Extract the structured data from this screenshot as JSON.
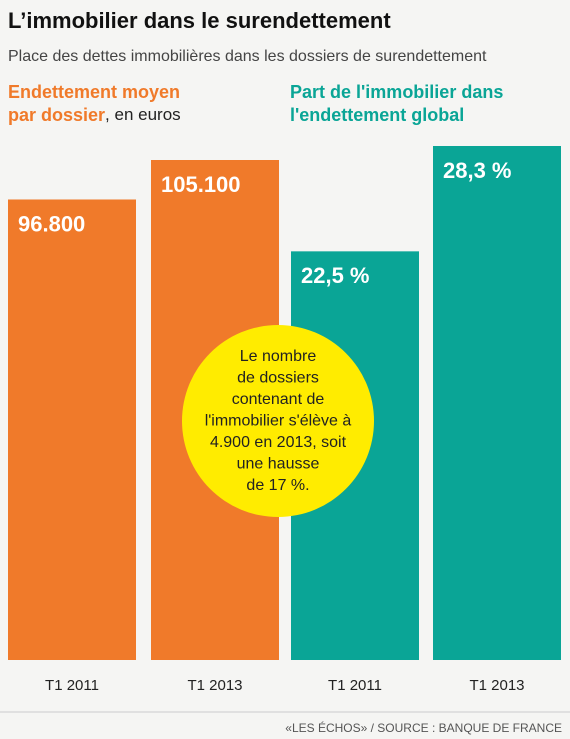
{
  "title": "L’immobilier dans le surendettement",
  "subtitle": "Place des dettes immobilières dans les dossiers de surendettement",
  "note": [
    "Le nombre",
    "de dossiers",
    "contenant de",
    "l'immobilier s'élève à",
    "4.900 en 2013, soit",
    "une hausse",
    "de 17 %."
  ],
  "source": "«LES ÉCHOS» / SOURCE : BANQUE DE FRANCE",
  "chart_data": [
    {
      "type": "bar",
      "title": [
        "Endettement moyen",
        "par dossier"
      ],
      "unit": ", en euros",
      "categories": [
        "T1 2011",
        "T1 2013"
      ],
      "values": [
        96800,
        105100
      ],
      "value_labels": [
        "96.800",
        "105.100"
      ],
      "color": "#f07a2a"
    },
    {
      "type": "bar",
      "title": [
        "Part  de l'immobilier dans",
        "l'endettement global"
      ],
      "categories": [
        "T1 2011",
        "T1 2013"
      ],
      "values": [
        22.5,
        28.3
      ],
      "value_labels": [
        "22,5 %",
        "28,3 %"
      ],
      "color": "#0aa596"
    }
  ]
}
